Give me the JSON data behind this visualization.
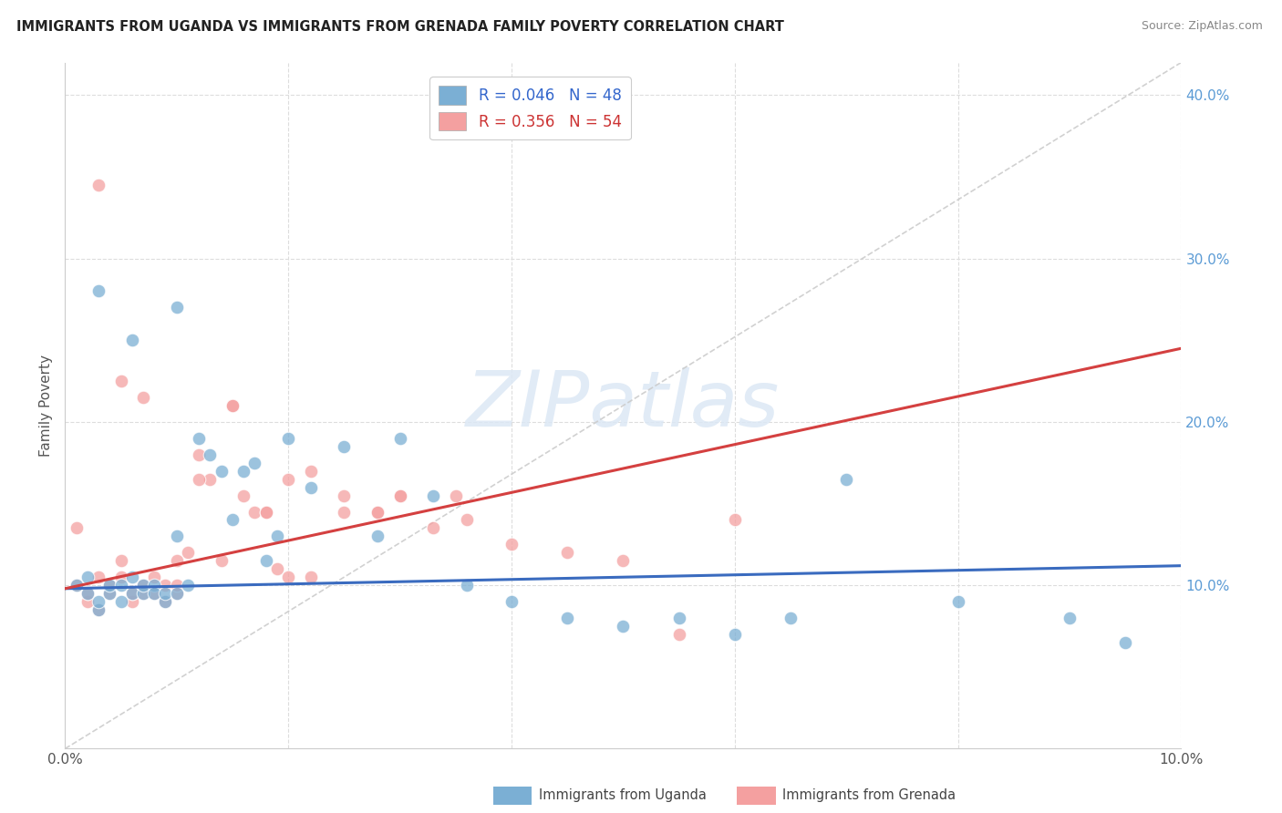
{
  "title": "IMMIGRANTS FROM UGANDA VS IMMIGRANTS FROM GRENADA FAMILY POVERTY CORRELATION CHART",
  "source": "Source: ZipAtlas.com",
  "ylabel": "Family Poverty",
  "xlim": [
    0.0,
    0.1
  ],
  "ylim": [
    0.0,
    0.42
  ],
  "right_yticks": [
    0.1,
    0.2,
    0.3,
    0.4
  ],
  "right_yticklabels": [
    "10.0%",
    "20.0%",
    "30.0%",
    "40.0%"
  ],
  "xticks": [
    0.0,
    0.02,
    0.04,
    0.06,
    0.08,
    0.1
  ],
  "xticklabels": [
    "0.0%",
    "",
    "",
    "",
    "",
    "10.0%"
  ],
  "color_uganda": "#7bafd4",
  "color_grenada": "#f4a0a0",
  "line_uganda_color": "#3a6bbf",
  "line_grenada_color": "#d44040",
  "diag_color": "#cccccc",
  "grid_color": "#dddddd",
  "watermark_color": "#e0e8f0",
  "watermark_text": "ZIPatlas",
  "legend_uganda_r": "0.046",
  "legend_uganda_n": "48",
  "legend_grenada_r": "0.356",
  "legend_grenada_n": "54",
  "uganda_x": [
    0.001,
    0.002,
    0.002,
    0.003,
    0.003,
    0.004,
    0.004,
    0.005,
    0.005,
    0.006,
    0.006,
    0.007,
    0.007,
    0.008,
    0.008,
    0.009,
    0.009,
    0.01,
    0.01,
    0.011,
    0.012,
    0.013,
    0.014,
    0.015,
    0.016,
    0.017,
    0.018,
    0.019,
    0.02,
    0.022,
    0.025,
    0.028,
    0.03,
    0.033,
    0.036,
    0.04,
    0.045,
    0.05,
    0.055,
    0.06,
    0.065,
    0.07,
    0.08,
    0.09,
    0.095,
    0.003,
    0.006,
    0.01
  ],
  "uganda_y": [
    0.1,
    0.095,
    0.105,
    0.085,
    0.09,
    0.095,
    0.1,
    0.09,
    0.1,
    0.105,
    0.095,
    0.095,
    0.1,
    0.1,
    0.095,
    0.09,
    0.095,
    0.13,
    0.095,
    0.1,
    0.19,
    0.18,
    0.17,
    0.14,
    0.17,
    0.175,
    0.115,
    0.13,
    0.19,
    0.16,
    0.185,
    0.13,
    0.19,
    0.155,
    0.1,
    0.09,
    0.08,
    0.075,
    0.08,
    0.07,
    0.08,
    0.165,
    0.09,
    0.08,
    0.065,
    0.28,
    0.25,
    0.27
  ],
  "grenada_x": [
    0.001,
    0.001,
    0.002,
    0.002,
    0.003,
    0.003,
    0.004,
    0.004,
    0.005,
    0.005,
    0.006,
    0.006,
    0.007,
    0.007,
    0.008,
    0.008,
    0.009,
    0.009,
    0.01,
    0.01,
    0.011,
    0.012,
    0.013,
    0.014,
    0.015,
    0.016,
    0.017,
    0.018,
    0.019,
    0.02,
    0.022,
    0.025,
    0.028,
    0.03,
    0.033,
    0.036,
    0.04,
    0.045,
    0.05,
    0.055,
    0.06,
    0.003,
    0.005,
    0.007,
    0.01,
    0.012,
    0.015,
    0.018,
    0.02,
    0.022,
    0.025,
    0.028,
    0.03,
    0.035
  ],
  "grenada_y": [
    0.1,
    0.135,
    0.09,
    0.095,
    0.105,
    0.085,
    0.095,
    0.1,
    0.105,
    0.115,
    0.09,
    0.095,
    0.095,
    0.1,
    0.105,
    0.095,
    0.09,
    0.1,
    0.095,
    0.1,
    0.12,
    0.18,
    0.165,
    0.115,
    0.21,
    0.155,
    0.145,
    0.145,
    0.11,
    0.105,
    0.105,
    0.145,
    0.145,
    0.155,
    0.135,
    0.14,
    0.125,
    0.12,
    0.115,
    0.07,
    0.14,
    0.345,
    0.225,
    0.215,
    0.115,
    0.165,
    0.21,
    0.145,
    0.165,
    0.17,
    0.155,
    0.145,
    0.155,
    0.155
  ]
}
